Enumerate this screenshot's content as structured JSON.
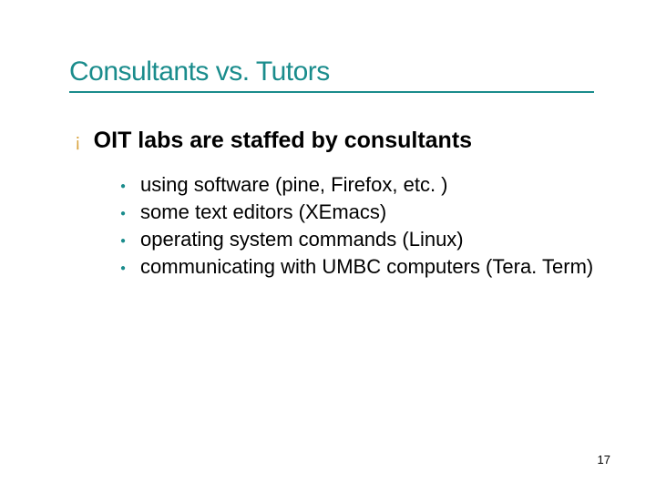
{
  "title": "Consultants vs. Tutors",
  "colors": {
    "title": "#1a8c8c",
    "underline": "#1a8c8c",
    "topBulletMarker": "#d9a440",
    "subBulletMarker": "#1a8c8c",
    "text": "#000000",
    "background": "#ffffff"
  },
  "fontSizes": {
    "title": 30,
    "topBullet": 25,
    "subBullet": 22,
    "pageNumber": 13
  },
  "topBullet": {
    "marker": "¡",
    "text": "OIT labs are staffed by consultants"
  },
  "subBullets": [
    "using software (pine, Firefox, etc. )",
    "some text editors (XEmacs)",
    "operating system commands (Linux)",
    "communicating with UMBC computers (Tera. Term)"
  ],
  "pageNumber": "17"
}
